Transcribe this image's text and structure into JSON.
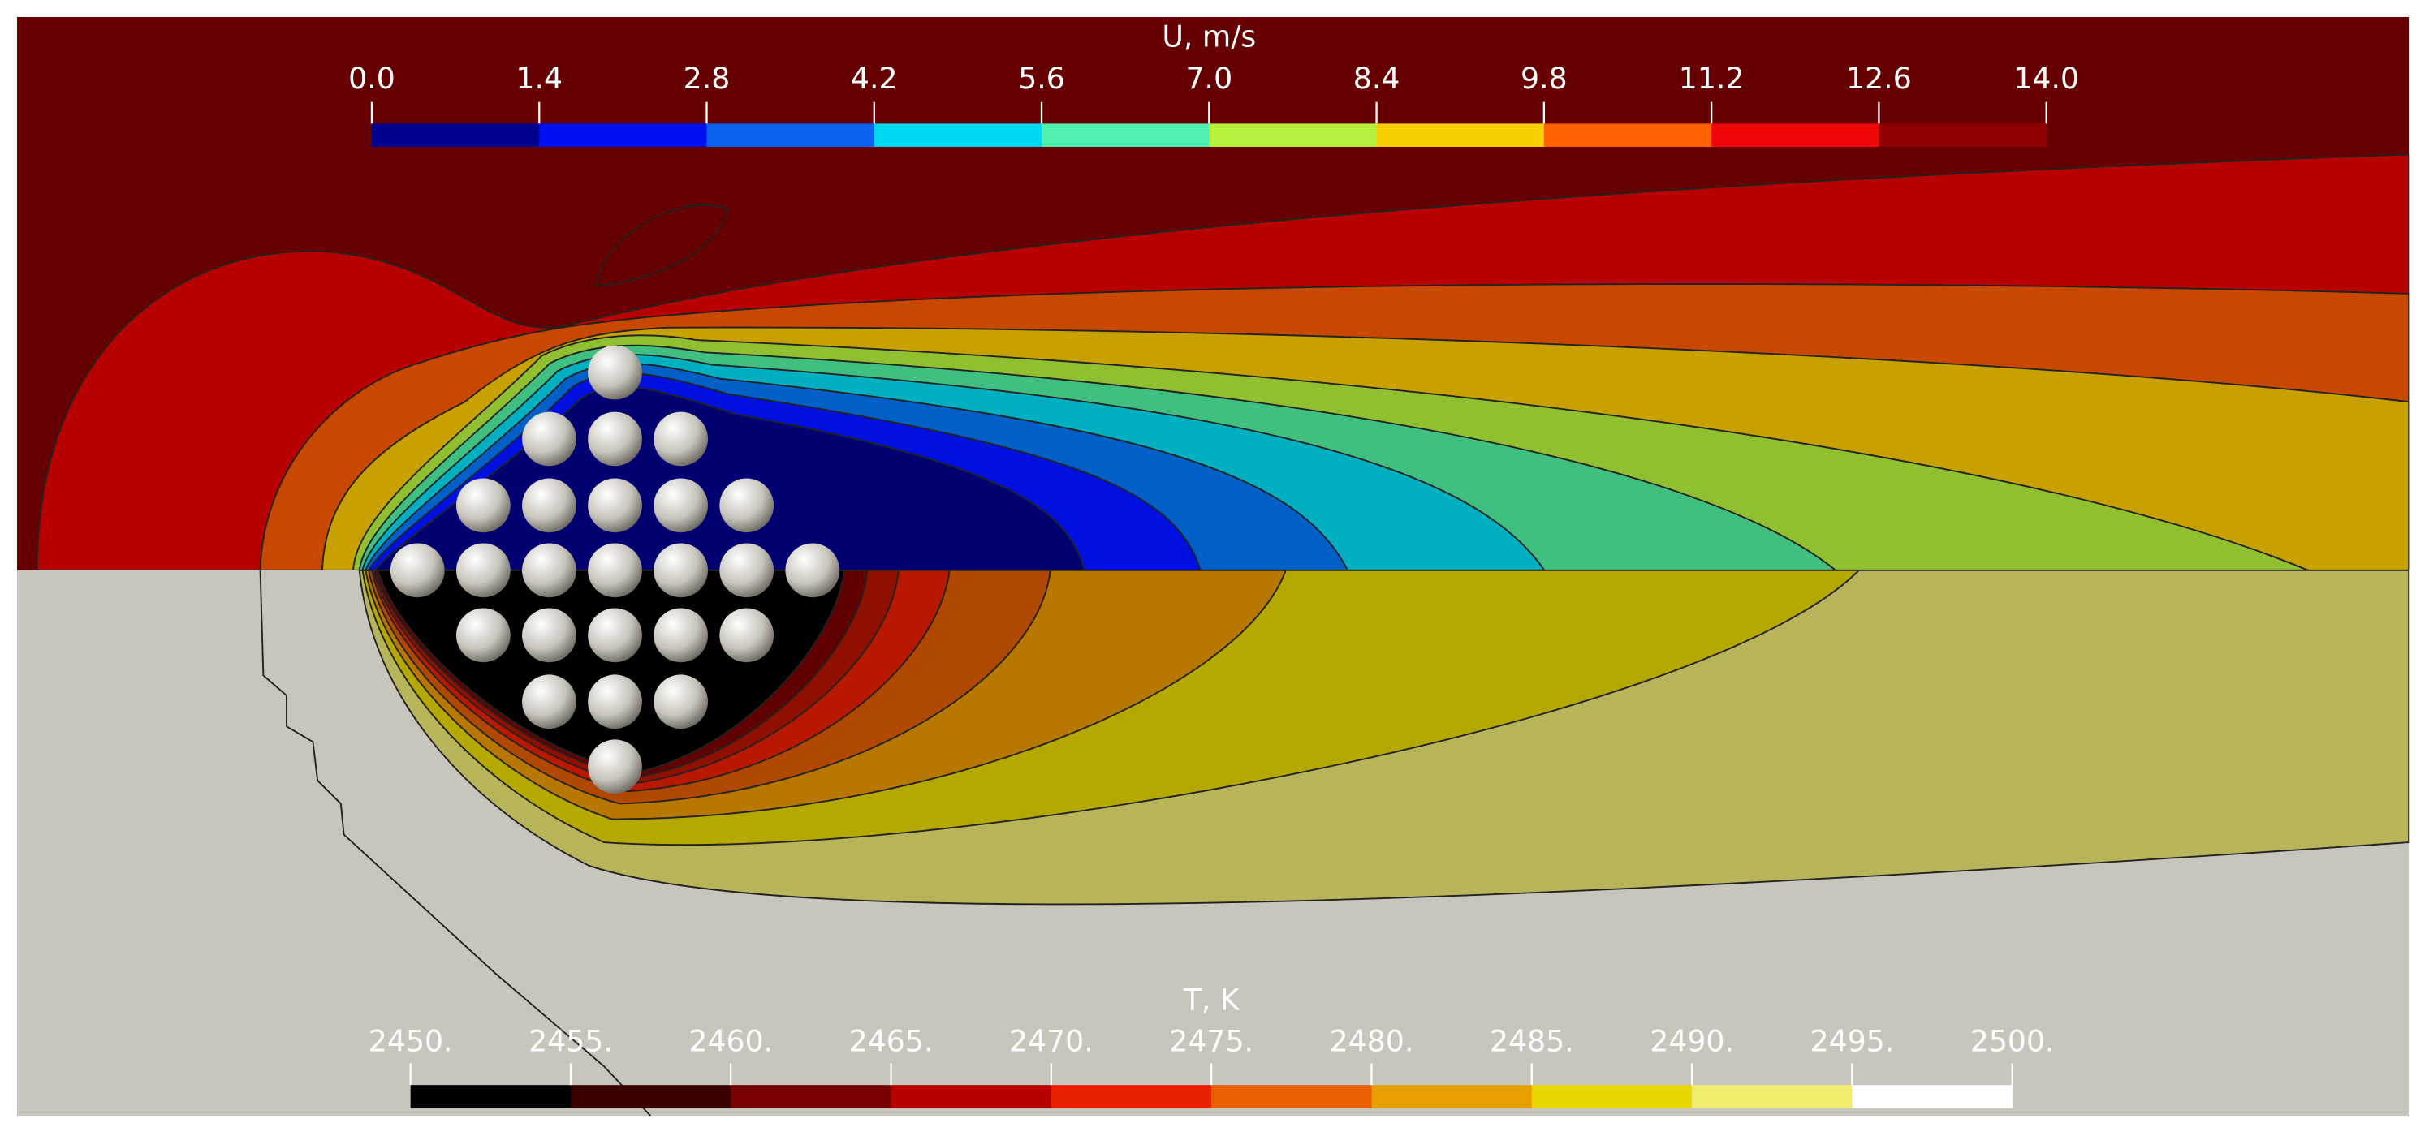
{
  "colorbars": [
    {
      "title": "U, m/s",
      "range": [
        0,
        14
      ],
      "ticks": [
        {
          "value": 0,
          "label": "0.0"
        },
        {
          "value": 1.4,
          "label": "1.4"
        },
        {
          "value": 2.8,
          "label": "2.8"
        },
        {
          "value": 4.2,
          "label": "4.2"
        },
        {
          "value": 5.6,
          "label": "5.6"
        },
        {
          "value": 7,
          "label": "7.0"
        },
        {
          "value": 8.4,
          "label": "8.4"
        },
        {
          "value": 9.8,
          "label": "9.8"
        },
        {
          "value": 11.2,
          "label": "11.2"
        },
        {
          "value": 12.6,
          "label": "12.6"
        },
        {
          "value": 14,
          "label": "14.0"
        }
      ],
      "colors": [
        "#00008c",
        "#0010f0",
        "#0a64f0",
        "#00d8f0",
        "#50f0b0",
        "#b8f040",
        "#f8d000",
        "#ff6000",
        "#f00808",
        "#900000"
      ]
    },
    {
      "title": "T, K",
      "range": [
        2450,
        2500
      ],
      "ticks": [
        {
          "value": 2450,
          "label": "2450."
        },
        {
          "value": 2455,
          "label": "2455."
        },
        {
          "value": 2460,
          "label": "2460."
        },
        {
          "value": 2465,
          "label": "2465."
        },
        {
          "value": 2470,
          "label": "2470."
        },
        {
          "value": 2475,
          "label": "2475."
        },
        {
          "value": 2480,
          "label": "2480."
        },
        {
          "value": 2485,
          "label": "2485."
        },
        {
          "value": 2490,
          "label": "2490."
        },
        {
          "value": 2495,
          "label": "2495."
        },
        {
          "value": 2500,
          "label": "2500."
        }
      ],
      "colors": [
        "#000000",
        "#3a0000",
        "#780000",
        "#b80000",
        "#e82000",
        "#e86000",
        "#e8a000",
        "#e8d800",
        "#f0ec70",
        "#ffffff"
      ]
    }
  ]
}
